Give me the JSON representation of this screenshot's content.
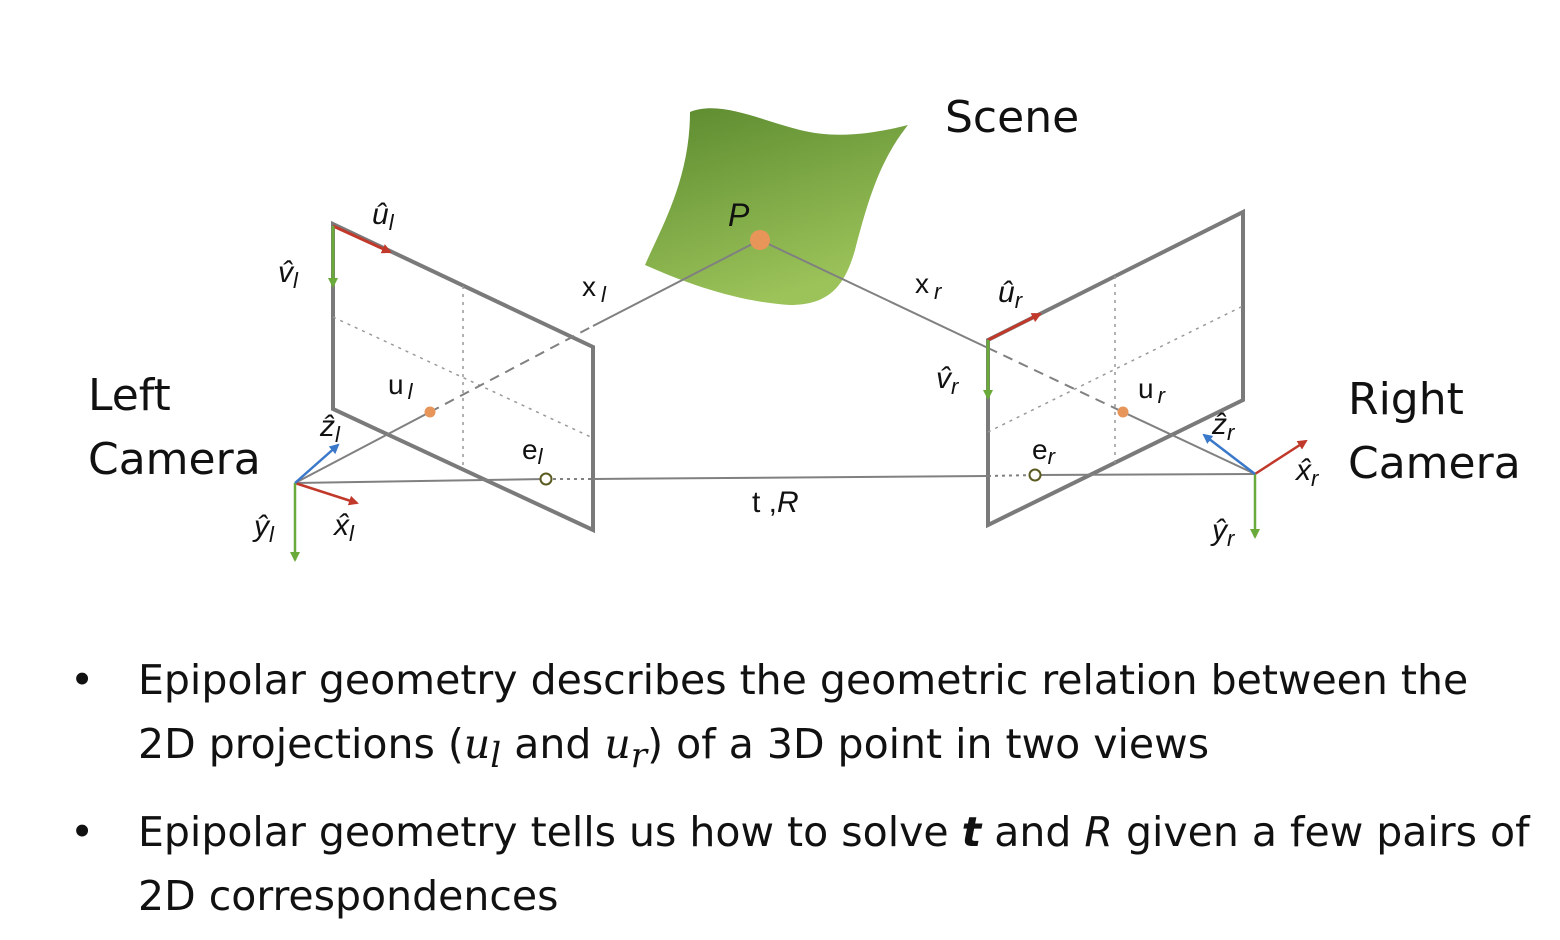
{
  "diagram": {
    "scene_label": "Scene",
    "left_camera": [
      "Left",
      "Camera"
    ],
    "right_camera": [
      "Right",
      "Camera"
    ],
    "point": {
      "name": "P"
    },
    "rays": {
      "left": {
        "base": "x",
        "sub": "l"
      },
      "right": {
        "base": "x",
        "sub": "r"
      }
    },
    "baseline": {
      "base": "t ,",
      "ital": "R"
    },
    "left_image": {
      "u_axis": {
        "base": "û",
        "sub": "l"
      },
      "v_axis": {
        "base": "v̂",
        "sub": "l"
      },
      "projection": {
        "base": "u",
        "sub": "l"
      },
      "epipole": {
        "base": "e",
        "sub": "l"
      }
    },
    "right_image": {
      "u_axis": {
        "base": "û",
        "sub": "r"
      },
      "v_axis": {
        "base": "v̂",
        "sub": "r"
      },
      "projection": {
        "base": "u",
        "sub": "r"
      },
      "epipole": {
        "base": "e",
        "sub": "r"
      }
    },
    "left_frame": {
      "x": {
        "base": "x̂",
        "sub": "l"
      },
      "y": {
        "base": "ŷ",
        "sub": "l"
      },
      "z": {
        "base": "ẑ",
        "sub": "l"
      }
    },
    "right_frame": {
      "x": {
        "base": "x̂",
        "sub": "r"
      },
      "y": {
        "base": "ŷ",
        "sub": "r"
      },
      "z": {
        "base": "ẑ",
        "sub": "r"
      }
    },
    "colors": {
      "x_axis": "#c0392b",
      "y_axis": "#6aaa3a",
      "z_axis": "#3a78c9",
      "point": "#e8955a",
      "frame": "#7a7a7a",
      "surface": "#7fad45"
    }
  },
  "bullets": [
    {
      "t1": "Epipolar geometry describes the geometric relation between the 2D projections (",
      "m1": "u",
      "m1sub": "l",
      "t2": " and ",
      "m2": "u",
      "m2sub": "r",
      "t3": ") of a 3D point in two views"
    },
    {
      "t1": "Epipolar geometry tells us how to solve ",
      "b1": "t",
      "t2": " and ",
      "i1": "R",
      "t3": " given a few pairs of 2D correspondences"
    }
  ]
}
